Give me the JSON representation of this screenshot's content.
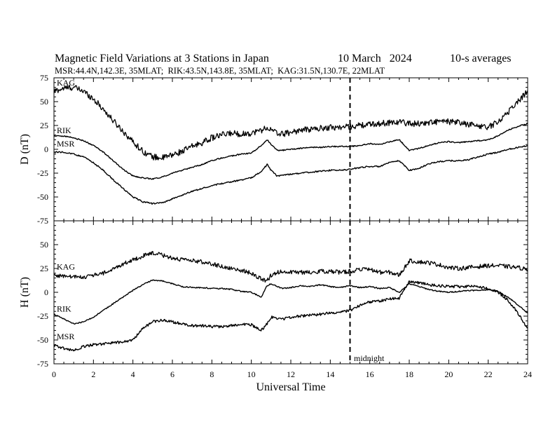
{
  "header": {
    "title": "Magnetic Field Variations at 3 Stations in Japan",
    "date": "10 March   2024",
    "averaging": "10-s averages",
    "subtitle": "MSR:44.4N,142.3E, 35MLAT;  RIK:43.5N,143.8E, 35MLAT;  KAG:31.5N,130.7E, 22MLAT"
  },
  "annotation": {
    "text": "midnight",
    "x": 15
  },
  "chart_data": [
    {
      "type": "line",
      "id": "D",
      "ylabel": "D (nT)",
      "xlabel": "",
      "xlim": [
        0,
        24
      ],
      "ylim": [
        -75,
        75
      ],
      "yticks": [
        75,
        50,
        25,
        0,
        -25,
        -50,
        -75
      ],
      "marker_x": 15,
      "series": [
        {
          "name": "KAG",
          "noise": 3.2,
          "x": [
            0,
            0.5,
            1,
            1.5,
            2,
            2.5,
            3,
            3.5,
            4,
            4.5,
            5,
            5.5,
            6,
            6.5,
            7,
            7.5,
            8,
            8.5,
            9,
            9.5,
            10,
            10.5,
            10.8,
            11,
            11.3,
            11.6,
            12,
            12.5,
            13,
            13.5,
            14,
            14.5,
            15,
            15.5,
            16,
            16.5,
            17,
            17.5,
            18,
            18.5,
            19,
            19.5,
            20,
            20.5,
            21,
            21.5,
            22,
            22.5,
            23,
            23.5,
            24
          ],
          "y": [
            61,
            64,
            65,
            61,
            53,
            42,
            30,
            19,
            8,
            -2,
            -8,
            -9,
            -6,
            -2,
            3,
            7,
            12,
            15,
            17,
            16,
            17,
            20,
            23,
            20,
            17,
            16,
            18,
            20,
            21,
            22,
            23,
            23,
            24,
            25,
            26,
            27,
            28,
            29,
            27,
            27,
            28,
            29,
            29,
            28,
            26,
            25,
            23,
            29,
            39,
            50,
            61
          ]
        },
        {
          "name": "RIK",
          "noise": 0.6,
          "x": [
            0,
            0.5,
            1,
            1.5,
            2,
            2.5,
            3,
            3.5,
            4,
            4.5,
            5,
            5.5,
            6,
            6.5,
            7,
            7.5,
            8,
            8.5,
            9,
            9.5,
            10,
            10.5,
            10.8,
            11,
            11.3,
            11.6,
            12,
            12.5,
            13,
            13.5,
            14,
            14.5,
            15,
            15.5,
            16,
            16.5,
            17,
            17.5,
            18,
            18.5,
            19,
            19.5,
            20,
            20.5,
            21,
            21.5,
            22,
            22.5,
            23,
            23.5,
            24
          ],
          "y": [
            14,
            14,
            12,
            9,
            4,
            -3,
            -12,
            -21,
            -28,
            -30,
            -31,
            -29,
            -25,
            -22,
            -19,
            -16,
            -12,
            -9,
            -7,
            -5,
            -4,
            4,
            10,
            5,
            -1,
            -1,
            0,
            1,
            2,
            2,
            3,
            3,
            3,
            4,
            6,
            5,
            8,
            10,
            -1,
            1,
            4,
            7,
            8,
            7,
            8,
            9,
            10,
            14,
            20,
            24,
            27
          ]
        },
        {
          "name": "MSR",
          "noise": 0.7,
          "x": [
            0,
            0.5,
            1,
            1.5,
            2,
            2.5,
            3,
            3.5,
            4,
            4.5,
            5,
            5.5,
            6,
            6.5,
            7,
            7.5,
            8,
            8.5,
            9,
            9.5,
            10,
            10.5,
            10.8,
            11,
            11.3,
            11.6,
            12,
            12.5,
            13,
            13.5,
            14,
            14.5,
            15,
            15.5,
            16,
            16.5,
            17,
            17.5,
            18,
            18.5,
            19,
            19.5,
            20,
            20.5,
            21,
            21.5,
            22,
            22.5,
            23,
            23.5,
            24
          ],
          "y": [
            -3,
            -3,
            -5,
            -8,
            -14,
            -22,
            -32,
            -41,
            -50,
            -55,
            -57,
            -56,
            -52,
            -48,
            -44,
            -41,
            -38,
            -36,
            -34,
            -32,
            -30,
            -23,
            -16,
            -22,
            -28,
            -27,
            -26,
            -25,
            -24,
            -23,
            -22,
            -22,
            -21,
            -19,
            -18,
            -18,
            -14,
            -12,
            -22,
            -20,
            -15,
            -13,
            -12,
            -12,
            -11,
            -8,
            -5,
            -3,
            0,
            2,
            4
          ]
        }
      ]
    },
    {
      "type": "line",
      "id": "H",
      "ylabel": "H (nT)",
      "xlabel": "Universal Time",
      "xlim": [
        0,
        24
      ],
      "ylim": [
        -75,
        75
      ],
      "xticks": [
        0,
        2,
        4,
        6,
        8,
        10,
        12,
        14,
        16,
        18,
        20,
        22,
        24
      ],
      "yticks": [
        75,
        50,
        25,
        0,
        -25,
        -50,
        -75
      ],
      "marker_x": 15,
      "series": [
        {
          "name": "KAG",
          "noise": 2.2,
          "x": [
            0,
            0.5,
            1,
            1.5,
            2,
            2.5,
            3,
            3.5,
            4,
            4.5,
            5,
            5.5,
            6,
            6.5,
            7,
            7.5,
            8,
            8.5,
            9,
            9.5,
            10,
            10.5,
            10.8,
            11,
            11.3,
            11.6,
            12,
            12.5,
            13,
            13.5,
            14,
            14.5,
            15,
            15.5,
            16,
            16.5,
            17,
            17.5,
            18,
            18.5,
            19,
            19.5,
            20,
            20.5,
            21,
            21.5,
            22,
            22.5,
            23,
            23.5,
            24
          ],
          "y": [
            18,
            17,
            16,
            16,
            18,
            20,
            24,
            30,
            34,
            38,
            41,
            39,
            36,
            34,
            33,
            32,
            30,
            27,
            25,
            23,
            20,
            14,
            12,
            18,
            21,
            22,
            21,
            21,
            21,
            22,
            22,
            21,
            22,
            24,
            24,
            21,
            21,
            18,
            33,
            32,
            31,
            29,
            26,
            25,
            26,
            27,
            28,
            28,
            27,
            26,
            24
          ]
        },
        {
          "name": "RIK",
          "noise": 0.6,
          "x": [
            0,
            0.5,
            1,
            1.5,
            2,
            2.5,
            3,
            3.5,
            4,
            4.5,
            5,
            5.5,
            6,
            6.5,
            7,
            7.5,
            8,
            8.5,
            9,
            9.5,
            10,
            10.5,
            10.8,
            11,
            11.3,
            11.6,
            12,
            12.5,
            13,
            13.5,
            14,
            14.5,
            15,
            15.5,
            16,
            16.5,
            17,
            17.5,
            18,
            18.5,
            19,
            19.5,
            20,
            20.5,
            21,
            21.5,
            22,
            22.5,
            23,
            23.5,
            24
          ],
          "y": [
            -23,
            -28,
            -33,
            -31,
            -26,
            -19,
            -12,
            -5,
            2,
            8,
            13,
            12,
            9,
            6,
            5,
            5,
            4,
            4,
            3,
            1,
            0,
            -5,
            7,
            9,
            6,
            4,
            5,
            7,
            6,
            8,
            6,
            5,
            7,
            5,
            6,
            4,
            5,
            0,
            9,
            6,
            3,
            1,
            0,
            1,
            2,
            2,
            3,
            1,
            -5,
            -13,
            -22
          ]
        },
        {
          "name": "MSR",
          "noise": 1.4,
          "x": [
            0,
            0.5,
            1,
            1.5,
            2,
            2.5,
            3,
            3.5,
            4,
            4.5,
            5,
            5.5,
            6,
            6.5,
            7,
            7.5,
            8,
            8.5,
            9,
            9.5,
            10,
            10.5,
            10.8,
            11,
            11.3,
            11.6,
            12,
            12.5,
            13,
            13.5,
            14,
            14.5,
            15,
            15.5,
            16,
            16.5,
            17,
            17.5,
            18,
            18.5,
            19,
            19.5,
            20,
            20.5,
            21,
            21.5,
            22,
            22.5,
            23,
            23.5,
            24
          ],
          "y": [
            -55,
            -59,
            -61,
            -57,
            -55,
            -54,
            -53,
            -52,
            -50,
            -38,
            -31,
            -29,
            -31,
            -33,
            -35,
            -35,
            -36,
            -36,
            -35,
            -33,
            -34,
            -40,
            -33,
            -26,
            -27,
            -28,
            -26,
            -25,
            -24,
            -23,
            -21,
            -21,
            -19,
            -14,
            -10,
            -9,
            -7,
            -6,
            11,
            10,
            8,
            7,
            6,
            6,
            6,
            6,
            4,
            0,
            -8,
            -22,
            -38
          ]
        }
      ]
    }
  ]
}
